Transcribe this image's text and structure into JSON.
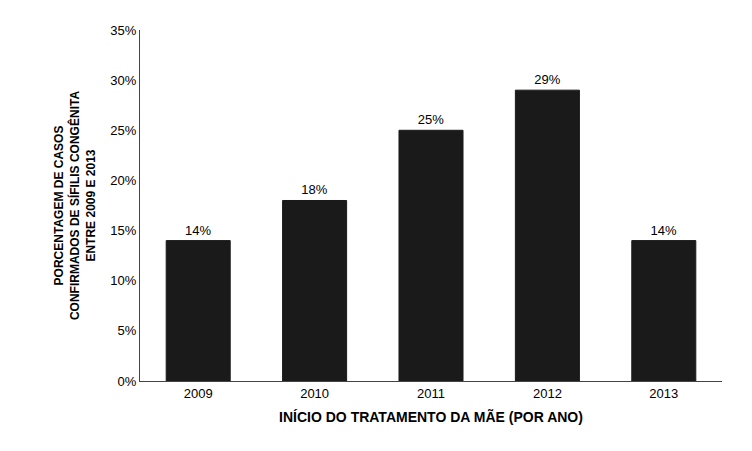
{
  "chart_data": {
    "type": "bar",
    "categories": [
      "2009",
      "2010",
      "2011",
      "2012",
      "2013"
    ],
    "values": [
      0.14,
      0.18,
      0.25,
      0.29,
      0.14
    ],
    "value_labels": [
      "14%",
      "18%",
      "25%",
      "29%",
      "14%"
    ],
    "data_labels": true,
    "color": "#1a1a1a",
    "xlabel": "INÍCIO DO TRATAMENTO DA MÃE (POR ANO)",
    "ylabel": [
      "PORCENTAGEM DE CASOS",
      "CONFIRMADOS DE SÍFILIS CONGÊNITA",
      "ENTRE 2009 E 2013"
    ],
    "ylim": [
      0,
      0.35
    ],
    "yticks": [
      {
        "value": 0.0,
        "label": "0%"
      },
      {
        "value": 0.05,
        "label": "5%"
      },
      {
        "value": 0.1,
        "label": "10%"
      },
      {
        "value": 0.15,
        "label": "15%"
      },
      {
        "value": 0.2,
        "label": "20%"
      },
      {
        "value": 0.25,
        "label": "25%"
      },
      {
        "value": 0.3,
        "label": "30%"
      },
      {
        "value": 0.35,
        "label": "35%"
      }
    ],
    "grid": false
  }
}
